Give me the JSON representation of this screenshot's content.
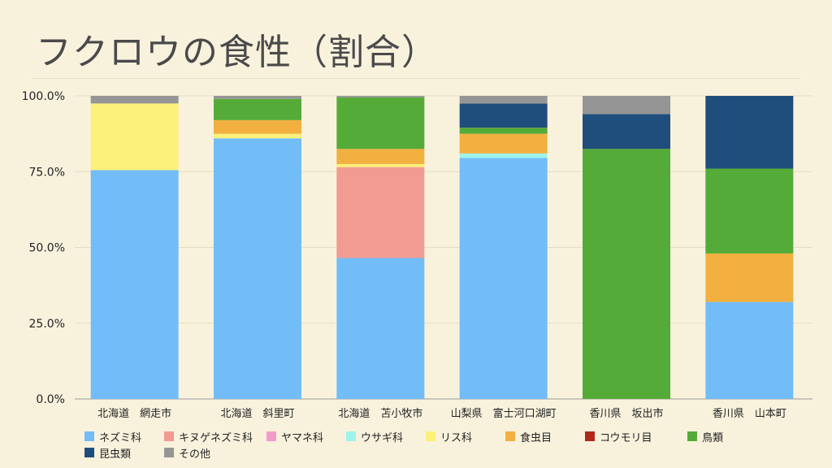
{
  "slide": {
    "title": "フクロウの食性（割合）"
  },
  "chart_data": {
    "type": "bar",
    "stacked": true,
    "categories": [
      "北海道　網走市",
      "北海道　斜里町",
      "北海道　苫小牧市",
      "山梨県　富士河口湖町",
      "香川県　坂出市",
      "香川県　山本町"
    ],
    "ylim": [
      0,
      100
    ],
    "yticks": [
      "0.0%",
      "25.0%",
      "50.0%",
      "75.0%",
      "100.0%"
    ],
    "grid": true,
    "legend_position": "bottom",
    "series": [
      {
        "name": "ネズミ科",
        "color": "#72bcf7",
        "values": [
          75.5,
          86.0,
          46.5,
          79.5,
          0,
          32.0
        ]
      },
      {
        "name": "キヌゲネズミ科",
        "color": "#f29b92",
        "values": [
          0,
          0,
          30.0,
          0,
          0,
          0
        ]
      },
      {
        "name": "ヤマネ科",
        "color": "#f29bcb",
        "values": [
          0,
          0,
          0,
          0,
          0,
          0
        ]
      },
      {
        "name": "ウサギ科",
        "color": "#9ff3ea",
        "values": [
          0,
          0,
          0,
          1.5,
          0,
          0
        ]
      },
      {
        "name": "リス科",
        "color": "#fbf07a",
        "values": [
          22.0,
          1.5,
          1.0,
          0,
          0,
          0
        ]
      },
      {
        "name": "食虫目",
        "color": "#f1b040",
        "values": [
          0,
          4.5,
          5.0,
          6.5,
          0,
          16.0
        ]
      },
      {
        "name": "コウモリ目",
        "color": "#b0281a",
        "values": [
          0,
          0,
          0,
          0,
          0,
          0
        ]
      },
      {
        "name": "鳥類",
        "color": "#55ab37",
        "values": [
          0,
          7.0,
          17.0,
          2.0,
          82.5,
          28.0
        ]
      },
      {
        "name": "昆虫類",
        "color": "#1f4e7c",
        "values": [
          0,
          0,
          0,
          8.0,
          11.5,
          24.0
        ]
      },
      {
        "name": "その他",
        "color": "#959595",
        "values": [
          2.5,
          1.0,
          0.5,
          2.5,
          6.0,
          0
        ]
      }
    ]
  }
}
